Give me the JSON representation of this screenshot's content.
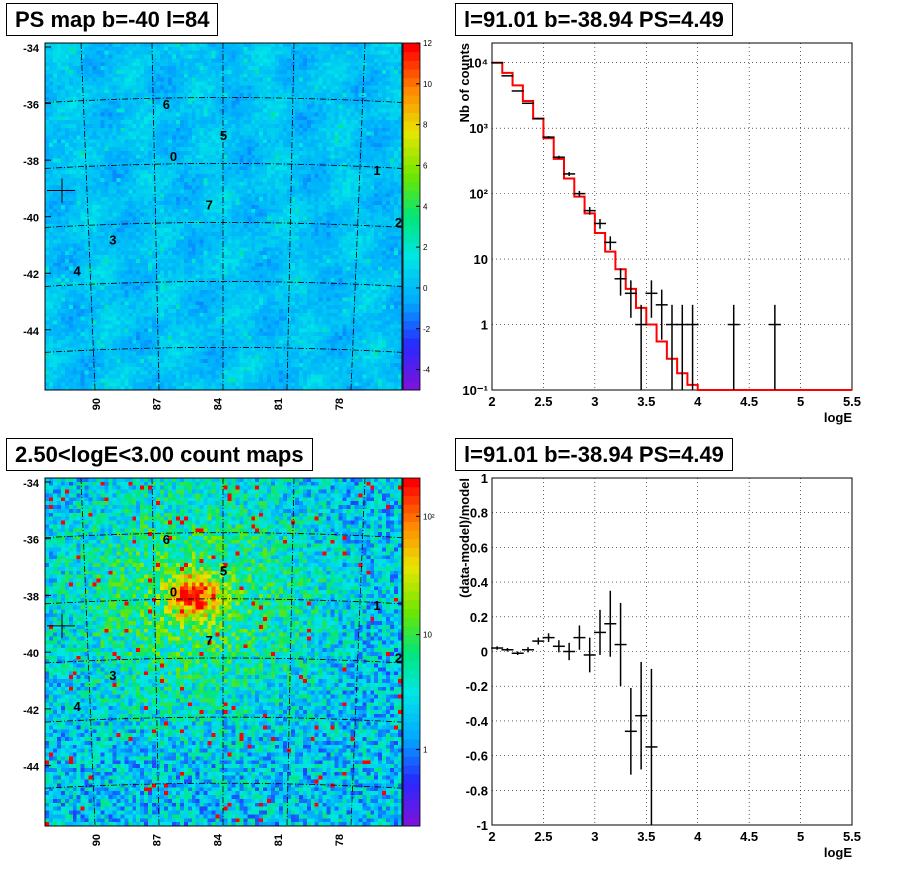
{
  "panels": {
    "ps_map": {
      "title": "PS map b=-40 l=84",
      "colorbar": {
        "scale": "linear",
        "min": -5,
        "max": 12,
        "ticks": [
          "-4",
          "-2",
          "0",
          "2",
          "4",
          "6",
          "8",
          "10",
          "12"
        ]
      },
      "y_ticks": [
        "-34",
        "-36",
        "-38",
        "-40",
        "-42",
        "-44"
      ],
      "x_ticks": [
        "90",
        "87",
        "84",
        "81",
        "78"
      ],
      "source_labels": [
        "0",
        "1",
        "2",
        "3",
        "4",
        "5",
        "6",
        "7"
      ]
    },
    "spectrum": {
      "title": "l=91.01 b=-38.94 PS=4.49"
    },
    "count_map": {
      "title": "2.50<logE<3.00 count maps",
      "colorbar": {
        "scale": "log",
        "ticks": [
          "1",
          "10",
          "10²"
        ]
      },
      "y_ticks": [
        "-34",
        "-36",
        "-38",
        "-40",
        "-42",
        "-44"
      ],
      "x_ticks": [
        "90",
        "87",
        "84",
        "81",
        "78"
      ],
      "source_labels": [
        "0",
        "1",
        "2",
        "3",
        "4",
        "5",
        "6",
        "7"
      ]
    },
    "residual": {
      "title": "l=91.01 b=-38.94 PS=4.49"
    }
  },
  "chart_data": [
    {
      "type": "line",
      "title": "l=91.01 b=-38.94 PS=4.49",
      "xlabel": "logE",
      "ylabel": "Nb of counts",
      "xlim": [
        2,
        5.5
      ],
      "ylim": [
        0.1,
        20000
      ],
      "yscale": "log",
      "grid": true,
      "x_tick_labels": [
        "2",
        "2.5",
        "3",
        "3.5",
        "4",
        "4.5",
        "5",
        "5.5"
      ],
      "y_tick_labels": [
        "10⁻¹",
        "1",
        "10",
        "10²",
        "10³",
        "10⁴"
      ],
      "series": [
        {
          "role": "data",
          "color": "#000000",
          "x": [
            2.05,
            2.15,
            2.25,
            2.35,
            2.45,
            2.55,
            2.65,
            2.75,
            2.85,
            2.95,
            3.05,
            3.15,
            3.25,
            3.35,
            3.45,
            3.55,
            3.65,
            3.75,
            3.85,
            3.95,
            4.35,
            4.75
          ],
          "y": [
            10000,
            6300,
            3700,
            2400,
            1400,
            730,
            360,
            200,
            100,
            55,
            35,
            18,
            5,
            3,
            1,
            3,
            2,
            1,
            1,
            1,
            1,
            1
          ]
        },
        {
          "role": "model",
          "color": "#ff0000",
          "x": [
            2.0,
            2.1,
            2.2,
            2.3,
            2.4,
            2.5,
            2.6,
            2.7,
            2.8,
            2.9,
            3.0,
            3.1,
            3.2,
            3.3,
            3.4,
            3.5,
            3.6,
            3.7,
            3.8,
            3.9,
            4.0
          ],
          "y": [
            10000,
            7000,
            4500,
            2600,
            1400,
            700,
            340,
            170,
            90,
            50,
            25,
            13,
            7,
            3.5,
            1.8,
            1.0,
            0.55,
            0.3,
            0.18,
            0.12,
            0.1
          ]
        }
      ]
    },
    {
      "type": "scatter",
      "title": "l=91.01 b=-38.94 PS=4.49",
      "xlabel": "logE",
      "ylabel": "(data-model)/model",
      "xlim": [
        2,
        5.5
      ],
      "ylim": [
        -1,
        1
      ],
      "grid": true,
      "x_tick_labels": [
        "2",
        "2.5",
        "3",
        "3.5",
        "4",
        "4.5",
        "5",
        "5.5"
      ],
      "y_tick_labels": [
        "-1",
        "-0.8",
        "-0.6",
        "-0.4",
        "-0.2",
        "0",
        "0.2",
        "0.4",
        "0.6",
        "0.8",
        "1"
      ],
      "series": [
        {
          "color": "#000000",
          "x": [
            2.05,
            2.15,
            2.25,
            2.35,
            2.45,
            2.55,
            2.65,
            2.75,
            2.85,
            2.95,
            3.05,
            3.15,
            3.25,
            3.35,
            3.45,
            3.55
          ],
          "y": [
            0.02,
            0.01,
            -0.01,
            0.01,
            0.06,
            0.08,
            0.03,
            0.0,
            0.08,
            -0.02,
            0.11,
            0.16,
            0.04,
            -0.46,
            -0.37,
            -0.55
          ],
          "err": [
            0.01,
            0.01,
            0.01,
            0.015,
            0.02,
            0.025,
            0.035,
            0.05,
            0.07,
            0.1,
            0.13,
            0.19,
            0.24,
            0.25,
            0.31,
            0.45
          ]
        }
      ]
    }
  ]
}
